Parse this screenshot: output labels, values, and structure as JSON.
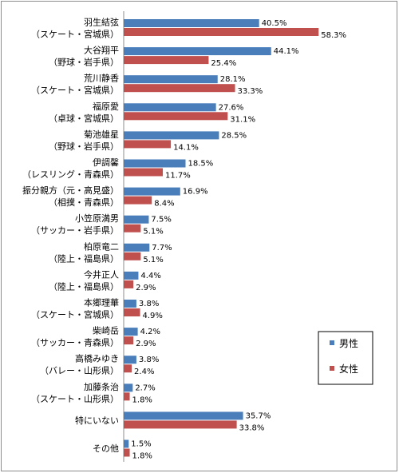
{
  "chart_data": {
    "type": "bar",
    "orientation": "horizontal",
    "categories": [
      [
        "羽生結弦",
        "（スケート・宮城県）"
      ],
      [
        "大谷翔平",
        "（野球・岩手県）"
      ],
      [
        "荒川静香",
        "（スケート・宮城県）"
      ],
      [
        "福原愛",
        "（卓球・宮城県）"
      ],
      [
        "菊池雄星",
        "（野球・岩手県）"
      ],
      [
        "伊調馨",
        "（レスリング・青森県）"
      ],
      [
        "振分親方（元・高見盛）",
        "（相撲・青森県）"
      ],
      [
        "小笠原満男",
        "（サッカー・岩手県）"
      ],
      [
        "柏原竜二",
        "（陸上・福島県）"
      ],
      [
        "今井正人",
        "（陸上・福島県）"
      ],
      [
        "本郷理華",
        "（スケート・宮城県）"
      ],
      [
        "柴崎岳",
        "（サッカー・青森県）"
      ],
      [
        "高橋みゆき",
        "（バレー・山形県）"
      ],
      [
        "加藤条治",
        "（スケート・山形県）"
      ],
      [
        "特にいない"
      ],
      [
        "その他"
      ]
    ],
    "series": [
      {
        "name": "男性",
        "color": "#4a7ebb",
        "values": [
          40.5,
          44.1,
          28.1,
          27.6,
          28.5,
          18.5,
          16.9,
          7.5,
          7.7,
          4.4,
          3.8,
          4.2,
          3.8,
          2.7,
          35.7,
          1.5
        ],
        "labels": [
          "40.5%",
          "44.1%",
          "28.1%",
          "27.6%",
          "28.5%",
          "18.5%",
          "16.9%",
          "7.5%",
          "7.7%",
          "4.4%",
          "3.8%",
          "4.2%",
          "3.8%",
          "2.7%",
          "35.7%",
          "1.5%"
        ]
      },
      {
        "name": "女性",
        "color": "#c0504d",
        "values": [
          58.3,
          25.4,
          33.3,
          31.1,
          14.1,
          11.7,
          8.4,
          5.1,
          5.1,
          2.9,
          4.9,
          2.9,
          2.4,
          1.8,
          33.8,
          1.8
        ],
        "labels": [
          "58.3%",
          "25.4%",
          "33.3%",
          "31.1%",
          "14.1%",
          "11.7%",
          "8.4%",
          "5.1%",
          "5.1%",
          "2.9%",
          "4.9%",
          "2.9%",
          "2.4%",
          "1.8%",
          "33.8%",
          "1.8%"
        ]
      }
    ],
    "xlim": [
      0,
      70
    ],
    "legend": {
      "position": "right",
      "items": [
        "男性",
        "女性"
      ]
    },
    "grid": false
  }
}
